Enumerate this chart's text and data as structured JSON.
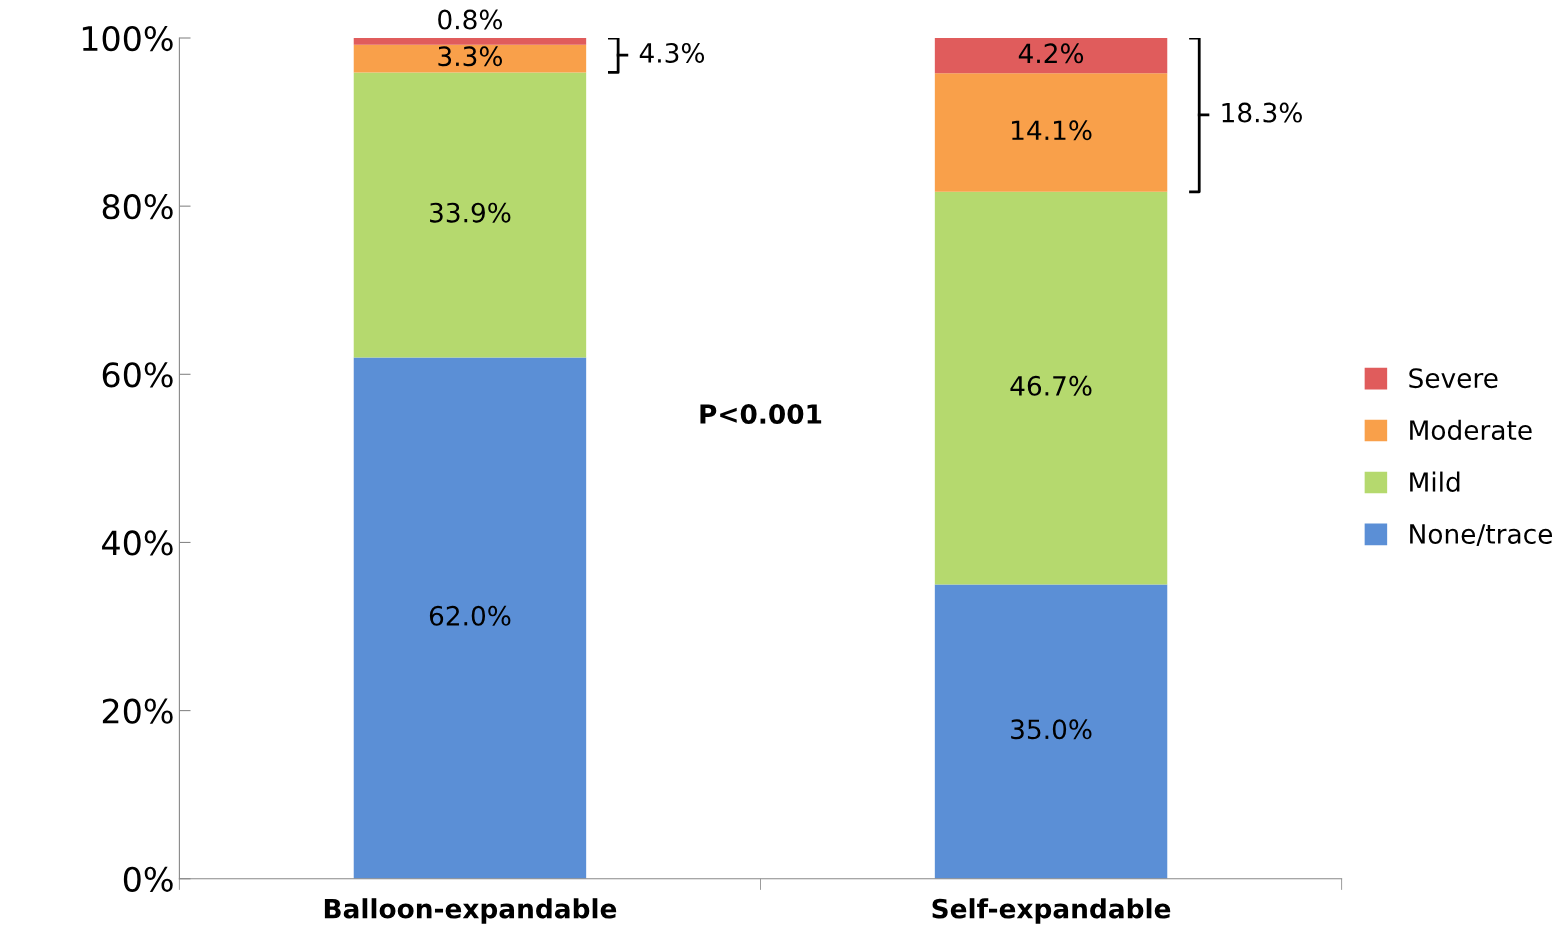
{
  "chart_data": {
    "type": "bar",
    "stacked": true,
    "categories": [
      "Balloon-expandable",
      "Self-expandable"
    ],
    "series": [
      {
        "name": "None/trace",
        "color": "#5b8fd6",
        "values": [
          62.0,
          35.0
        ],
        "value_labels": [
          "62.0%",
          "35.0%"
        ]
      },
      {
        "name": "Mild",
        "color": "#b5d96e",
        "values": [
          33.9,
          46.7
        ],
        "value_labels": [
          "33.9%",
          "46.7%"
        ]
      },
      {
        "name": "Moderate",
        "color": "#f9a04a",
        "values": [
          3.3,
          14.1
        ],
        "value_labels": [
          "3.3%",
          "14.1%"
        ]
      },
      {
        "name": "Severe",
        "color": "#e05c5c",
        "values": [
          0.8,
          4.2
        ],
        "value_labels": [
          "0.8%",
          "4.2%"
        ]
      }
    ],
    "ylim": [
      0,
      100
    ],
    "yticks": [
      {
        "value": 0,
        "label": "0%"
      },
      {
        "value": 20,
        "label": "20%"
      },
      {
        "value": 40,
        "label": "40%"
      },
      {
        "value": 60,
        "label": "60%"
      },
      {
        "value": 80,
        "label": "80%"
      },
      {
        "value": 100,
        "label": "100%"
      }
    ],
    "annotations": [
      "4.3%",
      "18.3%",
      "P<0.001"
    ],
    "legend": "right",
    "grid": false
  }
}
